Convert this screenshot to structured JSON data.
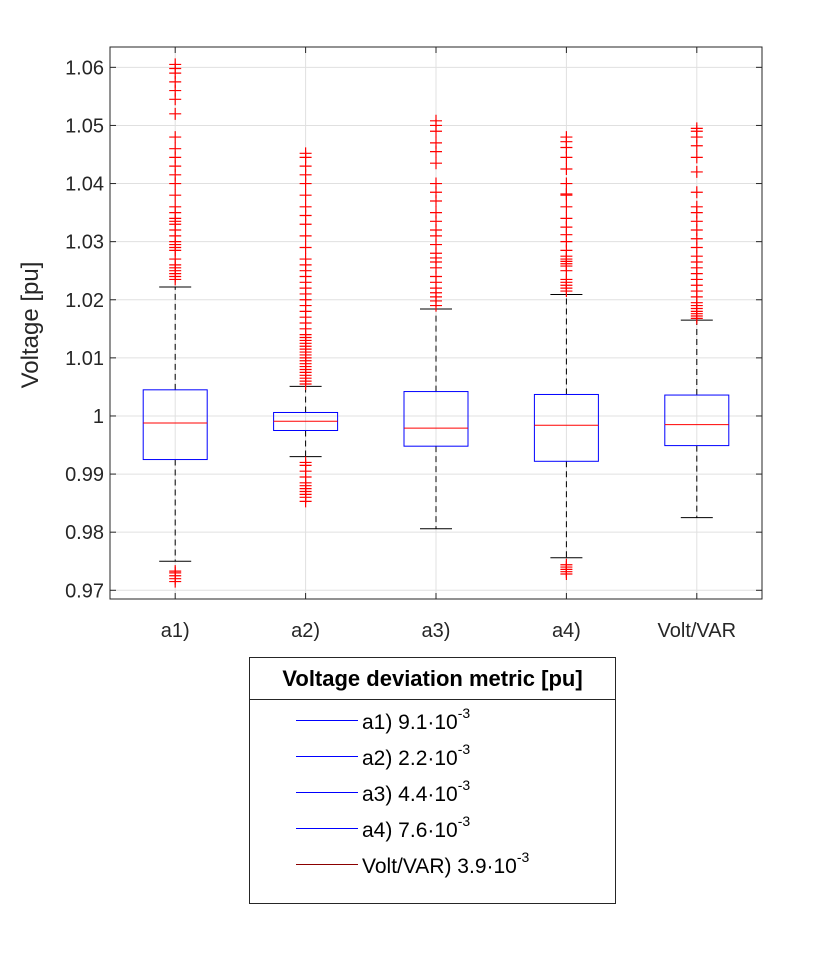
{
  "chart_data": {
    "type": "boxplot",
    "title": "",
    "xlabel": "",
    "ylabel": "Voltage [pu]",
    "ylim": [
      0.9685,
      1.0635
    ],
    "yticks": [
      0.97,
      0.98,
      0.99,
      1,
      1.01,
      1.02,
      1.03,
      1.04,
      1.05,
      1.06
    ],
    "ytick_labels": [
      "0.97",
      "0.98",
      "0.99",
      "1",
      "1.01",
      "1.02",
      "1.03",
      "1.04",
      "1.05",
      "1.06"
    ],
    "grid": true,
    "categories": [
      "a1)",
      "a2)",
      "a3)",
      "a4)",
      "Volt/VAR"
    ],
    "boxes": [
      {
        "name": "a1)",
        "whisker_low": 0.975,
        "q1": 0.9925,
        "median": 0.9988,
        "q3": 1.0045,
        "whisker_high": 1.0222,
        "outliers": [
          0.9715,
          0.972,
          0.9725,
          0.973,
          0.9733,
          1.0235,
          1.024,
          1.0245,
          1.025,
          1.0255,
          1.026,
          1.027,
          1.0285,
          1.029,
          1.0295,
          1.03,
          1.031,
          1.032,
          1.033,
          1.0335,
          1.034,
          1.035,
          1.036,
          1.038,
          1.04,
          1.0415,
          1.043,
          1.0445,
          1.046,
          1.048,
          1.052,
          1.0545,
          1.056,
          1.0575,
          1.059,
          1.0598,
          1.0605
        ]
      },
      {
        "name": "a2)",
        "whisker_low": 0.993,
        "q1": 0.9975,
        "median": 0.9991,
        "q3": 1.0006,
        "whisker_high": 1.0051,
        "outliers": [
          0.9853,
          0.986,
          0.9865,
          0.987,
          0.9875,
          0.988,
          0.9885,
          0.9895,
          0.9905,
          0.9915,
          0.992,
          1.0055,
          1.006,
          1.0065,
          1.007,
          1.0075,
          1.008,
          1.0085,
          1.009,
          1.0095,
          1.01,
          1.0105,
          1.011,
          1.0115,
          1.012,
          1.0125,
          1.013,
          1.0135,
          1.014,
          1.015,
          1.016,
          1.017,
          1.018,
          1.019,
          1.02,
          1.021,
          1.022,
          1.023,
          1.024,
          1.025,
          1.026,
          1.027,
          1.029,
          1.031,
          1.033,
          1.0345,
          1.036,
          1.038,
          1.04,
          1.0415,
          1.043,
          1.0445,
          1.0452
        ]
      },
      {
        "name": "a3)",
        "whisker_low": 0.9806,
        "q1": 0.9948,
        "median": 0.9979,
        "q3": 1.0042,
        "whisker_high": 1.0184,
        "outliers": [
          1.019,
          1.0198,
          1.0205,
          1.0212,
          1.022,
          1.023,
          1.024,
          1.0255,
          1.0265,
          1.0272,
          1.028,
          1.0295,
          1.031,
          1.032,
          1.0335,
          1.035,
          1.037,
          1.0385,
          1.04,
          1.0435,
          1.0455,
          1.047,
          1.049,
          1.05,
          1.0508
        ]
      },
      {
        "name": "a4)",
        "whisker_low": 0.9756,
        "q1": 0.9922,
        "median": 0.9984,
        "q3": 1.0037,
        "whisker_high": 1.0209,
        "outliers": [
          0.9728,
          0.9732,
          0.9736,
          0.974,
          0.9744,
          1.0215,
          1.022,
          1.0225,
          1.023,
          1.0235,
          1.025,
          1.0258,
          1.0262,
          1.0266,
          1.027,
          1.0275,
          1.0285,
          1.03,
          1.0312,
          1.0325,
          1.034,
          1.036,
          1.038,
          1.0382,
          1.04,
          1.0425,
          1.0445,
          1.0462,
          1.0472,
          1.048
        ]
      },
      {
        "name": "Volt/VAR",
        "whisker_low": 0.9825,
        "q1": 0.9949,
        "median": 0.9985,
        "q3": 1.0036,
        "whisker_high": 1.0165,
        "outliers": [
          1.0168,
          1.0172,
          1.0176,
          1.018,
          1.0185,
          1.019,
          1.0195,
          1.0205,
          1.0215,
          1.0225,
          1.0235,
          1.0245,
          1.0255,
          1.0265,
          1.0275,
          1.029,
          1.0305,
          1.032,
          1.0335,
          1.035,
          1.036,
          1.0385,
          1.042,
          1.0445,
          1.0465,
          1.048,
          1.049,
          1.0495
        ]
      }
    ],
    "legend": {
      "title": "Voltage deviation metric [pu]",
      "placement": "below plot",
      "entries": [
        {
          "label": "a1) 9.1·10",
          "exponent": "-3",
          "color": "#0000ff"
        },
        {
          "label": "a2) 2.2·10",
          "exponent": "-3",
          "color": "#0000ff"
        },
        {
          "label": "a3) 4.4·10",
          "exponent": "-3",
          "color": "#0000ff"
        },
        {
          "label": "a4) 7.6·10",
          "exponent": "-3",
          "color": "#0000ff"
        },
        {
          "label": "Volt/VAR) 3.9·10",
          "exponent": "-3",
          "color": "#8b0000"
        }
      ]
    },
    "colors": {
      "box": "#0000ff",
      "median": "#ff0000",
      "whisker": "#000000",
      "outlier": "#ff0000",
      "grid": "#e0e0e0",
      "axis": "#262626"
    }
  }
}
